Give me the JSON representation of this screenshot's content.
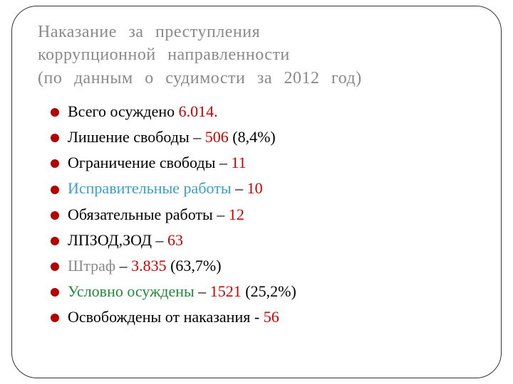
{
  "title": {
    "lines": [
      "Наказание за преступления",
      "коррупционной направленности",
      "(по данным о судимости за 2012 год)"
    ],
    "color": "#8a8a8a",
    "fontsize": 24
  },
  "bullet_color": "#b30000",
  "items": [
    {
      "segments": [
        {
          "text": "Всего осуждено ",
          "color": "#000000"
        },
        {
          "text": "6.014.",
          "color": "#cc0000"
        }
      ]
    },
    {
      "segments": [
        {
          "text": "Лишение свободы – ",
          "color": "#000000"
        },
        {
          "text": "506 ",
          "color": "#cc0000"
        },
        {
          "text": "(8,4%)",
          "color": "#000000"
        }
      ]
    },
    {
      "segments": [
        {
          "text": "Ограничение свободы – ",
          "color": "#000000"
        },
        {
          "text": "11",
          "color": "#cc0000"
        }
      ]
    },
    {
      "segments": [
        {
          "text": "Исправительные работы",
          "color": "#3aa0c9"
        },
        {
          "text": " – ",
          "color": "#000000"
        },
        {
          "text": "10",
          "color": "#cc0000"
        }
      ]
    },
    {
      "segments": [
        {
          "text": "Обязательные работы – ",
          "color": "#000000"
        },
        {
          "text": "12",
          "color": "#cc0000"
        }
      ]
    },
    {
      "segments": [
        {
          "text": "ЛПЗОД,ЗОД – ",
          "color": "#000000"
        },
        {
          "text": "63",
          "color": "#cc0000"
        }
      ]
    },
    {
      "segments": [
        {
          "text": "Штраф",
          "color": "#8a8a8a"
        },
        {
          "text": " – ",
          "color": "#000000"
        },
        {
          "text": "3.835",
          "color": "#cc0000"
        },
        {
          "text": " (63,7%)",
          "color": "#000000"
        }
      ]
    },
    {
      "segments": [
        {
          "text": "Условно осуждены",
          "color": "#1f8a3b"
        },
        {
          "text": " – ",
          "color": "#000000"
        },
        {
          "text": "1521",
          "color": "#cc0000"
        },
        {
          "text": " (25,2%)",
          "color": "#000000"
        }
      ]
    },
    {
      "segments": [
        {
          "text": "Освобождены от наказания - ",
          "color": "#000000"
        },
        {
          "text": "56",
          "color": "#cc0000"
        }
      ]
    }
  ]
}
